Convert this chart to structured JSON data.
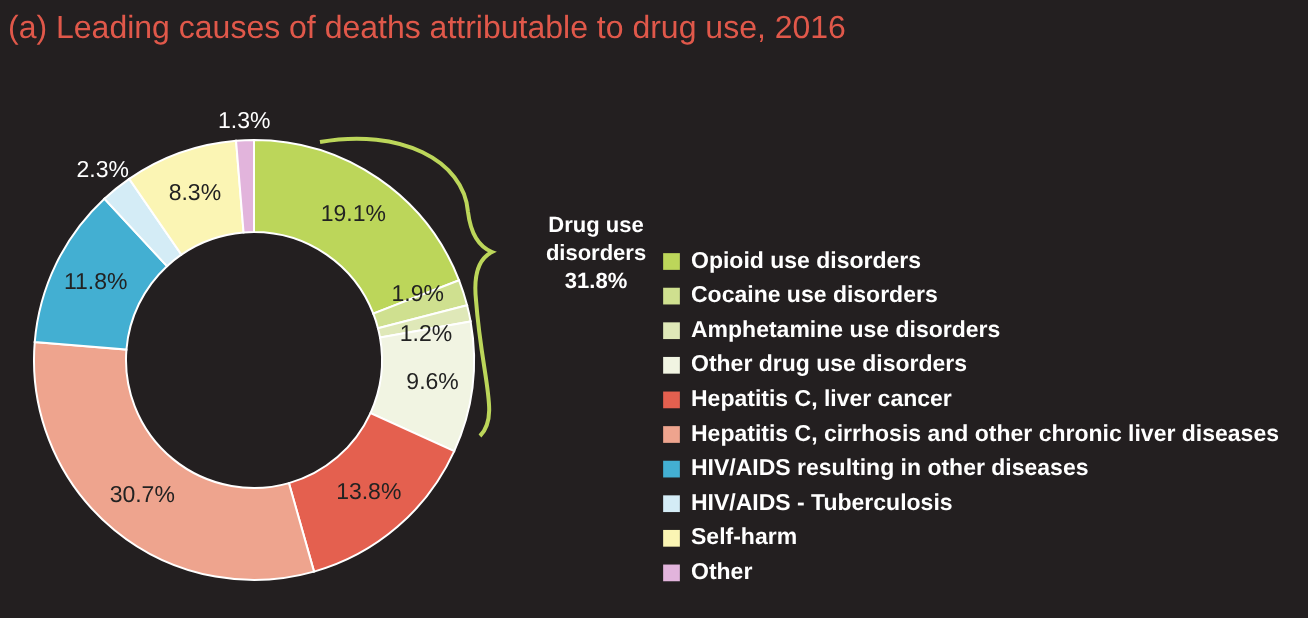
{
  "chart_data": {
    "type": "donut",
    "title": "(a) Leading causes of deaths attributable to drug use, 2016",
    "categories": [
      "Opioid use disorders",
      "Cocaine use disorders",
      "Amphetamine use disorders",
      "Other drug use disorders",
      "Hepatitis C, liver cancer",
      "Hepatitis C, cirrhosis and other chronic liver diseases",
      "HIV/AIDS resulting in other diseases",
      "HIV/AIDS - Tuberculosis",
      "Self-harm",
      "Other"
    ],
    "values": [
      19.1,
      1.9,
      1.2,
      9.6,
      13.8,
      30.7,
      11.8,
      2.3,
      8.3,
      1.3
    ],
    "value_labels": [
      "19.1%",
      "1.9%",
      "1.2%",
      "9.6%",
      "13.8%",
      "30.7%",
      "11.8%",
      "2.3%",
      "8.3%",
      "1.3%"
    ],
    "colors": [
      "#bcd65a",
      "#cfe08f",
      "#dfe8b8",
      "#f1f4e2",
      "#e4604f",
      "#eea48e",
      "#43afd2",
      "#d4ecf6",
      "#fbf5b4",
      "#e2b4dc"
    ],
    "annotations": [
      "Drug use\ndisorders\n31.8%"
    ],
    "legend": "right"
  }
}
